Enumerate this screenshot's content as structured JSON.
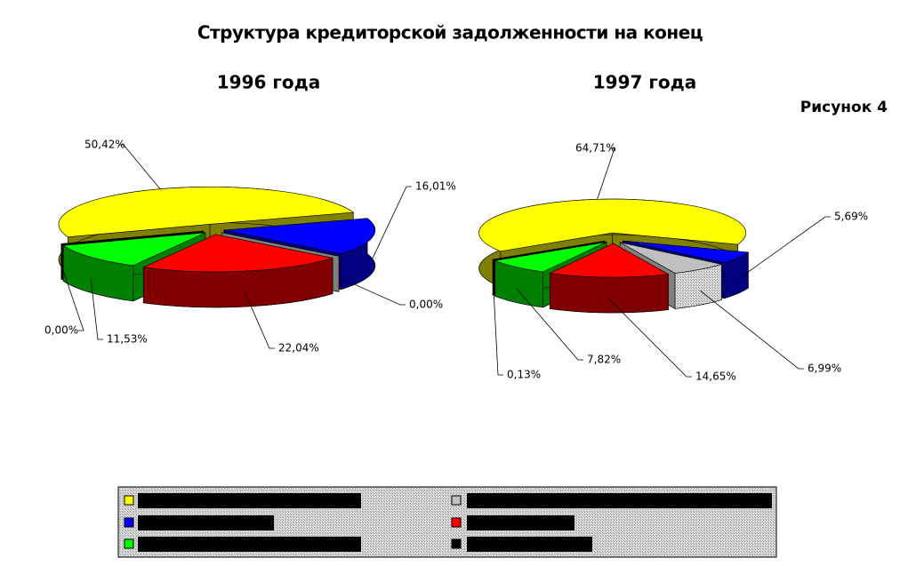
{
  "title": "Структура кредиторской задолженности на конец",
  "figure_label": "Рисунок 4",
  "chart_data": [
    {
      "type": "pie",
      "title": "1996 года",
      "values": [
        50.42,
        16.01,
        0.0,
        22.04,
        11.53,
        0.0
      ],
      "value_labels": [
        "50,42%",
        "16,01%",
        "0,00%",
        "22,04%",
        "11,53%",
        "0,00%"
      ],
      "colors": [
        "#ffff00",
        "#0000ff",
        "#c0c0c0",
        "#ff0000",
        "#00ff00",
        "#000000"
      ],
      "shade_colors": [
        "#808000",
        "#000080",
        "#808080",
        "#800000",
        "#008000",
        "#000000"
      ]
    },
    {
      "type": "pie",
      "title": "1997 года",
      "values": [
        64.71,
        5.69,
        6.99,
        14.65,
        7.82,
        0.13
      ],
      "value_labels": [
        "64,71%",
        "5,69%",
        "6,99%",
        "14,65%",
        "7,82%",
        "0,13%"
      ],
      "colors": [
        "#ffff00",
        "#0000ff",
        "#c0c0c0",
        "#ff0000",
        "#00ff00",
        "#000000"
      ],
      "shade_colors": [
        "#808000",
        "#000080",
        "#808080",
        "#800000",
        "#008000",
        "#000000"
      ]
    }
  ]
}
